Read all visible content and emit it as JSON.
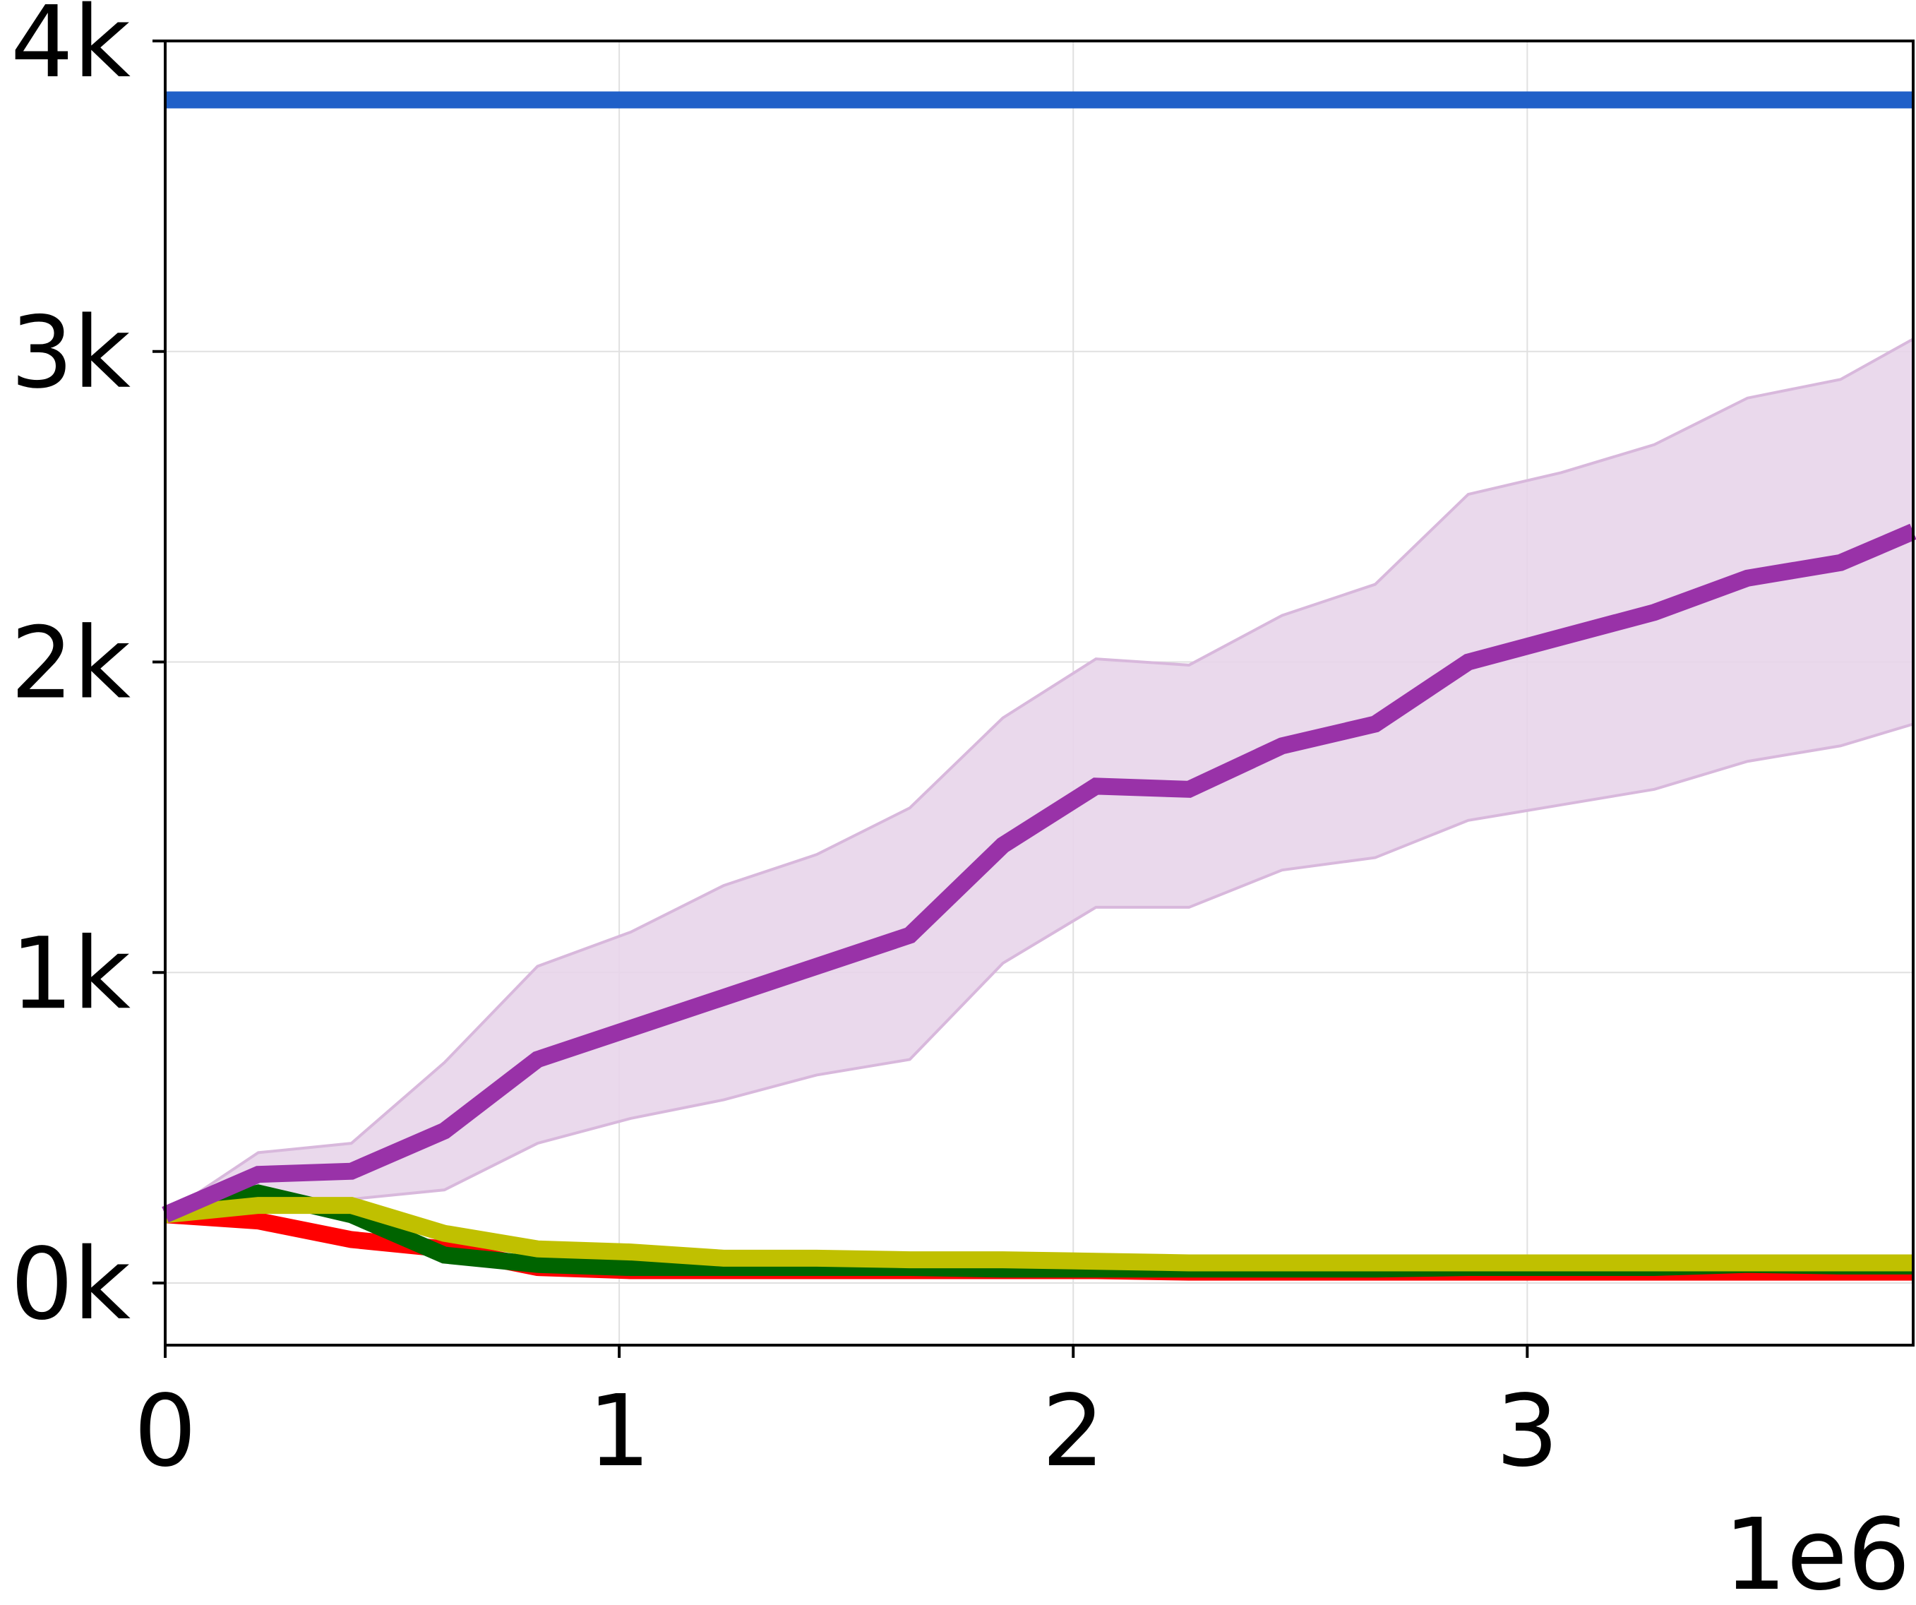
{
  "chart_data": {
    "type": "line",
    "title": "",
    "xlabel": "",
    "ylabel": "",
    "x_offset_label": "1e6",
    "xlim": [
      0,
      3.85
    ],
    "ylim": [
      -200,
      4000
    ],
    "xticks": [
      0,
      1,
      2,
      3
    ],
    "xtick_labels": [
      "0",
      "1",
      "2",
      "3"
    ],
    "yticks": [
      0,
      1000,
      2000,
      3000,
      4000
    ],
    "ytick_labels": [
      "0k",
      "1k",
      "2k",
      "3k",
      "4k"
    ],
    "grid": true,
    "x": [
      0,
      0.205,
      0.41,
      0.615,
      0.82,
      1.025,
      1.23,
      1.435,
      1.64,
      1.845,
      2.05,
      2.255,
      2.46,
      2.665,
      2.87,
      3.075,
      3.28,
      3.485,
      3.69,
      3.85
    ],
    "series": [
      {
        "color": "#2060c8",
        "values": [
          3810,
          3810,
          3810,
          3810,
          3810,
          3810,
          3810,
          3810,
          3810,
          3810,
          3810,
          3810,
          3810,
          3810,
          3810,
          3810,
          3810,
          3810,
          3810,
          3810
        ]
      },
      {
        "color": "#9932a8",
        "band_color": "#e8d5ea",
        "values": [
          220,
          350,
          360,
          490,
          720,
          820,
          920,
          1020,
          1120,
          1410,
          1600,
          1590,
          1730,
          1800,
          2000,
          2080,
          2160,
          2270,
          2320,
          2420
        ],
        "lower": [
          220,
          260,
          270,
          300,
          450,
          530,
          590,
          670,
          720,
          1030,
          1210,
          1210,
          1330,
          1370,
          1490,
          1540,
          1590,
          1680,
          1730,
          1800
        ],
        "upper": [
          220,
          420,
          450,
          710,
          1020,
          1130,
          1280,
          1380,
          1530,
          1820,
          2010,
          1990,
          2150,
          2250,
          2540,
          2610,
          2700,
          2850,
          2910,
          3040
        ]
      },
      {
        "color": "#ff0000",
        "values": [
          220,
          200,
          140,
          110,
          50,
          40,
          40,
          40,
          40,
          40,
          40,
          35,
          35,
          35,
          35,
          35,
          35,
          35,
          35,
          35
        ]
      },
      {
        "color": "#006400",
        "values": [
          220,
          290,
          220,
          90,
          60,
          50,
          50,
          50,
          50,
          45,
          45,
          45,
          45,
          45,
          50,
          50,
          50,
          60,
          55,
          55
        ]
      },
      {
        "color": "#c0c000",
        "values": [
          220,
          250,
          250,
          160,
          110,
          100,
          80,
          80,
          75,
          75,
          70,
          65,
          65,
          65,
          65,
          65,
          65,
          65,
          65,
          65
        ]
      }
    ]
  }
}
